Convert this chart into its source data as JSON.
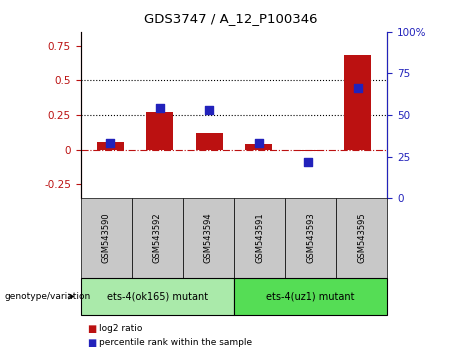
{
  "title": "GDS3747 / A_12_P100346",
  "samples": [
    "GSM543590",
    "GSM543592",
    "GSM543594",
    "GSM543591",
    "GSM543593",
    "GSM543595"
  ],
  "log2_ratio": [
    0.055,
    0.27,
    0.12,
    0.04,
    -0.012,
    0.68
  ],
  "percentile_rank": [
    33,
    54,
    53,
    33,
    22,
    66
  ],
  "group1_label": "ets-4(ok165) mutant",
  "group2_label": "ets-4(uz1) mutant",
  "group1_color": "#aaeaaa",
  "group2_color": "#55dd55",
  "sample_box_color": "#c8c8c8",
  "bar_color": "#BB1111",
  "dot_color": "#2222BB",
  "left_ylim": [
    -0.35,
    0.85
  ],
  "right_ylim": [
    0,
    100
  ],
  "left_yticks": [
    -0.25,
    0.0,
    0.25,
    0.5,
    0.75
  ],
  "right_yticks": [
    0,
    25,
    50,
    75,
    100
  ],
  "hline_values": [
    0.25,
    0.5
  ],
  "legend_log2": "log2 ratio",
  "legend_pct": "percentile rank within the sample",
  "genotype_label": "genotype/variation",
  "bar_width": 0.55
}
